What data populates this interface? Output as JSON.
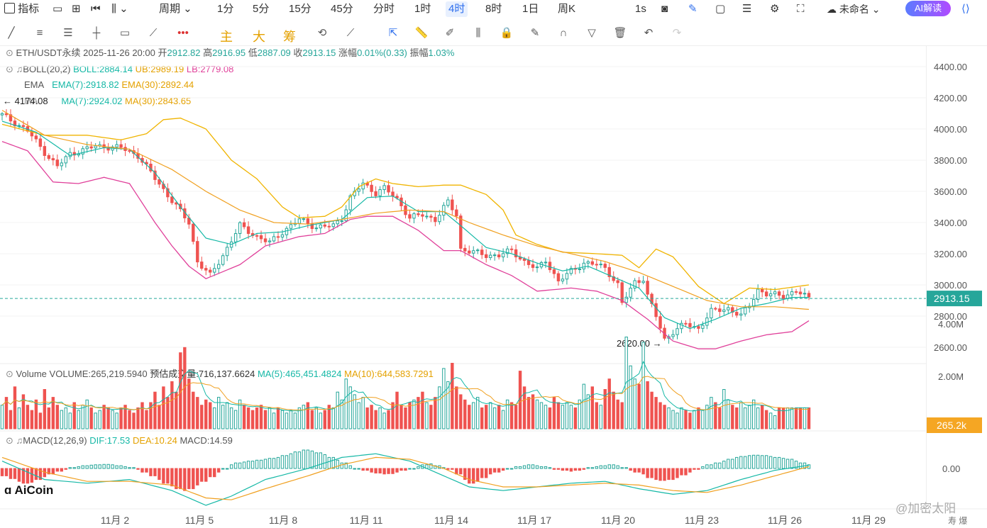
{
  "toolbar": {
    "indicator_label": "指标",
    "period_label": "周期",
    "periods": [
      "1分",
      "5分",
      "15分",
      "45分",
      "分时",
      "1时",
      "4时",
      "8时",
      "1日",
      "周K"
    ],
    "active_period": "4时",
    "refresh": "1s",
    "layout_name": "未命名",
    "ai_label": "AI解读"
  },
  "drawbar": {
    "main": "主",
    "big": "大",
    "chips": "筹"
  },
  "price_info": {
    "symbol": "ETH/USDT永续",
    "datetime": "2025-11-26 20:00",
    "open_label": "开",
    "open": "2912.82",
    "high_label": "高",
    "high": "2916.95",
    "low_label": "低",
    "low": "2887.09",
    "close_label": "收",
    "close": "2913.15",
    "change_label": "涨幅",
    "change": "0.01%(0.33)",
    "amp_label": "振幅",
    "amp": "1.03%"
  },
  "boll_info": {
    "name": "BOLL(20,2)",
    "boll": "BOLL:2884.14",
    "ub": "UB:2989.19",
    "lb": "LB:2779.08"
  },
  "ema_info": {
    "name": "EMA",
    "ema7": "EMA(7):2918.82",
    "ema30": "EMA(30):2892.44"
  },
  "ma_info": {
    "name": "MA",
    "ma7": "MA(7):2924.02",
    "ma30": "MA(30):2843.65"
  },
  "vol_info": {
    "name": "Volume",
    "volume": "VOLUME:265,219.5940",
    "est": "预估成交量:716,137.6624",
    "ma5": "MA(5):465,451.4824",
    "ma10": "MA(10):644,583.7291"
  },
  "macd_info": {
    "name": "MACD(12,26,9)",
    "dif": "DIF:17.53",
    "dea": "DEA:10.24",
    "macd": "MACD:14.59"
  },
  "labels": {
    "high_mark": "4174.08",
    "low_mark": "2620.00",
    "current_price": "2913.15",
    "current_vol": "265.2k",
    "logo": "AiCoin",
    "watermark": "@加密太阳",
    "corner": "寿 爆"
  },
  "colors": {
    "up": "#26a69a",
    "down": "#ef5350",
    "boll_band": "#f0b400",
    "boll_lower": "#e0409a",
    "ma7": "#15b8a6",
    "ma30": "#f0a020",
    "accent": "#2f6fed"
  },
  "chart_data": {
    "type": "candlestick",
    "price_axis": {
      "ticks": [
        2600,
        2800,
        3000,
        3200,
        3400,
        3600,
        3800,
        4000,
        4200,
        4400
      ],
      "tick_labels": [
        "2600.00",
        "2800.00",
        "3000.00",
        "3200.00",
        "3400.00",
        "3600.00",
        "3800.00",
        "4000.00",
        "4200.00",
        "4400.00"
      ]
    },
    "volume_axis": {
      "ticks": [
        "2.00M",
        "4.00M"
      ]
    },
    "macd_axis": {
      "ticks": [
        "0.00"
      ]
    },
    "x_labels": [
      "11月 2",
      "11月 5",
      "11月 8",
      "11月 11",
      "11月 14",
      "11月 17",
      "11月 20",
      "11月 23",
      "11月 26",
      "11月 29"
    ],
    "close_series": [
      [
        0,
        4090
      ],
      [
        6,
        3990
      ],
      [
        10,
        3850
      ],
      [
        13,
        3760
      ],
      [
        16,
        3840
      ],
      [
        22,
        3890
      ],
      [
        28,
        3880
      ],
      [
        32,
        3830
      ],
      [
        35,
        3720
      ],
      [
        40,
        3540
      ],
      [
        44,
        3400
      ],
      [
        46,
        3150
      ],
      [
        49,
        3060
      ],
      [
        52,
        3190
      ],
      [
        56,
        3380
      ],
      [
        60,
        3310
      ],
      [
        63,
        3270
      ],
      [
        66,
        3340
      ],
      [
        70,
        3420
      ],
      [
        74,
        3370
      ],
      [
        78,
        3380
      ],
      [
        80,
        3430
      ],
      [
        82,
        3560
      ],
      [
        85,
        3650
      ],
      [
        88,
        3590
      ],
      [
        90,
        3620
      ],
      [
        93,
        3550
      ],
      [
        96,
        3430
      ],
      [
        99,
        3450
      ],
      [
        102,
        3420
      ],
      [
        105,
        3530
      ],
      [
        107,
        3450
      ],
      [
        108,
        3230
      ],
      [
        111,
        3210
      ],
      [
        114,
        3190
      ],
      [
        117,
        3190
      ],
      [
        120,
        3220
      ],
      [
        123,
        3150
      ],
      [
        126,
        3100
      ],
      [
        128,
        3160
      ],
      [
        131,
        3020
      ],
      [
        134,
        3090
      ],
      [
        137,
        3140
      ],
      [
        140,
        3130
      ],
      [
        142,
        3110
      ],
      [
        145,
        3000
      ],
      [
        146,
        2880
      ],
      [
        149,
        3020
      ],
      [
        151,
        3040
      ],
      [
        152,
        2930
      ],
      [
        154,
        2800
      ],
      [
        156,
        2650
      ],
      [
        158,
        2700
      ],
      [
        161,
        2750
      ],
      [
        164,
        2720
      ],
      [
        167,
        2830
      ],
      [
        171,
        2850
      ],
      [
        174,
        2800
      ],
      [
        176,
        2870
      ],
      [
        178,
        2970
      ],
      [
        180,
        2940
      ],
      [
        184,
        2930
      ],
      [
        187,
        2960
      ],
      [
        190,
        2913
      ]
    ],
    "boll_upper": [
      [
        0,
        4030
      ],
      [
        10,
        3960
      ],
      [
        20,
        3960
      ],
      [
        28,
        3930
      ],
      [
        34,
        3970
      ],
      [
        38,
        4060
      ],
      [
        42,
        4070
      ],
      [
        48,
        4000
      ],
      [
        54,
        3800
      ],
      [
        60,
        3680
      ],
      [
        66,
        3500
      ],
      [
        70,
        3430
      ],
      [
        76,
        3440
      ],
      [
        80,
        3500
      ],
      [
        84,
        3630
      ],
      [
        88,
        3680
      ],
      [
        92,
        3650
      ],
      [
        98,
        3630
      ],
      [
        104,
        3640
      ],
      [
        108,
        3640
      ],
      [
        114,
        3580
      ],
      [
        118,
        3480
      ],
      [
        121,
        3320
      ],
      [
        126,
        3260
      ],
      [
        132,
        3210
      ],
      [
        140,
        3200
      ],
      [
        146,
        3190
      ],
      [
        150,
        3110
      ],
      [
        154,
        3230
      ],
      [
        158,
        3180
      ],
      [
        164,
        2990
      ],
      [
        170,
        2880
      ],
      [
        176,
        2980
      ],
      [
        182,
        2970
      ],
      [
        190,
        3000
      ]
    ],
    "boll_lower": [
      [
        0,
        3920
      ],
      [
        6,
        3860
      ],
      [
        12,
        3660
      ],
      [
        18,
        3650
      ],
      [
        24,
        3690
      ],
      [
        30,
        3650
      ],
      [
        36,
        3400
      ],
      [
        40,
        3250
      ],
      [
        44,
        3120
      ],
      [
        48,
        3040
      ],
      [
        56,
        3130
      ],
      [
        62,
        3250
      ],
      [
        70,
        3310
      ],
      [
        76,
        3330
      ],
      [
        82,
        3420
      ],
      [
        86,
        3440
      ],
      [
        92,
        3440
      ],
      [
        98,
        3350
      ],
      [
        104,
        3220
      ],
      [
        108,
        3220
      ],
      [
        114,
        3130
      ],
      [
        120,
        3060
      ],
      [
        126,
        2960
      ],
      [
        134,
        2980
      ],
      [
        140,
        2960
      ],
      [
        146,
        2900
      ],
      [
        152,
        2780
      ],
      [
        158,
        2640
      ],
      [
        164,
        2590
      ],
      [
        168,
        2590
      ],
      [
        174,
        2640
      ],
      [
        180,
        2680
      ],
      [
        186,
        2700
      ],
      [
        190,
        2770
      ]
    ],
    "ma7": [
      [
        0,
        4050
      ],
      [
        8,
        3980
      ],
      [
        16,
        3830
      ],
      [
        24,
        3880
      ],
      [
        30,
        3870
      ],
      [
        36,
        3720
      ],
      [
        42,
        3500
      ],
      [
        48,
        3300
      ],
      [
        54,
        3260
      ],
      [
        60,
        3330
      ],
      [
        66,
        3340
      ],
      [
        72,
        3380
      ],
      [
        80,
        3420
      ],
      [
        86,
        3560
      ],
      [
        92,
        3570
      ],
      [
        98,
        3470
      ],
      [
        104,
        3470
      ],
      [
        108,
        3380
      ],
      [
        114,
        3240
      ],
      [
        120,
        3200
      ],
      [
        126,
        3140
      ],
      [
        132,
        3090
      ],
      [
        138,
        3120
      ],
      [
        144,
        3050
      ],
      [
        150,
        2980
      ],
      [
        156,
        2790
      ],
      [
        162,
        2720
      ],
      [
        168,
        2780
      ],
      [
        174,
        2850
      ],
      [
        180,
        2880
      ],
      [
        186,
        2920
      ],
      [
        190,
        2920
      ]
    ],
    "ma30": [
      [
        0,
        4120
      ],
      [
        10,
        3960
      ],
      [
        20,
        3900
      ],
      [
        30,
        3870
      ],
      [
        40,
        3740
      ],
      [
        48,
        3600
      ],
      [
        56,
        3480
      ],
      [
        64,
        3400
      ],
      [
        72,
        3390
      ],
      [
        80,
        3420
      ],
      [
        88,
        3460
      ],
      [
        96,
        3480
      ],
      [
        104,
        3470
      ],
      [
        110,
        3400
      ],
      [
        118,
        3320
      ],
      [
        126,
        3250
      ],
      [
        134,
        3200
      ],
      [
        142,
        3150
      ],
      [
        150,
        3080
      ],
      [
        158,
        2990
      ],
      [
        166,
        2900
      ],
      [
        174,
        2860
      ],
      [
        182,
        2860
      ],
      [
        190,
        2843
      ]
    ],
    "volume": [
      0.9,
      1.2,
      0.7,
      1.6,
      0.8,
      1.3,
      0.9,
      0.7,
      1.1,
      0.6,
      1.5,
      0.8,
      1.2,
      0.9,
      0.7,
      0.8,
      0.6,
      1.0,
      0.7,
      0.9,
      1.1,
      0.8,
      0.6,
      0.7,
      0.9,
      0.8,
      0.7,
      0.6,
      0.8,
      0.9,
      0.7,
      0.6,
      0.8,
      1.0,
      0.7,
      1.0,
      1.4,
      0.9,
      1.6,
      1.2,
      1.8,
      1.4,
      2.9,
      3.1,
      1.9,
      1.4,
      1.2,
      0.9,
      1.1,
      1.0,
      0.8,
      1.2,
      0.9,
      1.0,
      0.8,
      0.7,
      1.1,
      0.9,
      0.8,
      0.7,
      0.8,
      0.9,
      0.7,
      0.8,
      0.6,
      0.8,
      0.7,
      0.6,
      0.7,
      0.6,
      0.8,
      0.9,
      1.0,
      0.7,
      0.8,
      0.6,
      0.7,
      0.9,
      0.8,
      1.4,
      1.1,
      1.9,
      1.6,
      1.3,
      1.0,
      1.2,
      0.8,
      0.9,
      0.7,
      0.8,
      0.6,
      0.7,
      1.0,
      1.4,
      0.9,
      0.8,
      1.0,
      1.1,
      1.2,
      1.4,
      1.0,
      0.9,
      1.2,
      1.6,
      2.3,
      1.8,
      2.5,
      1.6,
      1.3,
      1.1,
      0.9,
      1.0,
      1.2,
      0.8,
      0.9,
      1.0,
      0.8,
      0.9,
      0.7,
      1.1,
      1.0,
      0.9,
      2.2,
      1.6,
      1.2,
      1.3,
      1.1,
      1.0,
      0.9,
      0.8,
      1.2,
      1.0,
      0.9,
      1.0,
      0.9,
      0.8,
      1.1,
      1.7,
      1.3,
      1.6,
      1.0,
      0.9,
      1.5,
      1.9,
      1.4,
      1.1,
      1.0,
      3.5,
      2.4,
      1.9,
      1.7,
      3.3,
      1.8,
      1.4,
      1.2,
      1.0,
      0.9,
      0.8,
      0.7,
      0.6,
      0.8,
      0.7,
      0.6,
      0.7,
      0.8,
      0.7,
      0.9,
      1.2,
      1.0,
      0.8,
      1.5,
      1.1,
      0.9,
      0.8,
      1.0,
      0.8,
      0.9,
      1.1,
      0.8,
      0.9,
      0.7,
      0.6,
      0.5
    ],
    "macd_hist": [
      -40,
      -55,
      -70,
      -80,
      -75,
      -60,
      -45,
      -30,
      -15,
      -5,
      5,
      10,
      15,
      18,
      20,
      22,
      20,
      15,
      10,
      5,
      -5,
      -20,
      -40,
      -60,
      -80,
      -95,
      -110,
      -120,
      -110,
      -90,
      -70,
      -45,
      -20,
      0,
      20,
      30,
      35,
      40,
      45,
      50,
      55,
      60,
      70,
      80,
      90,
      100,
      95,
      85,
      75,
      60,
      45,
      30,
      15,
      0,
      -10,
      -20,
      -25,
      -30,
      -28,
      -20,
      -10,
      0,
      10,
      20,
      25,
      15,
      5,
      -5,
      -30,
      -60,
      -80,
      -70,
      -50,
      -30,
      -20,
      -10,
      0,
      10,
      15,
      20,
      15,
      10,
      5,
      -5,
      -10,
      -15,
      -10,
      -5,
      5,
      10,
      15,
      20,
      15,
      5,
      -10,
      -20,
      -30,
      -50,
      -60,
      -65,
      -60,
      -50,
      -35,
      -20,
      -5,
      10,
      20,
      30,
      40,
      50,
      60,
      65,
      70,
      72,
      70,
      65,
      60,
      55,
      50,
      40,
      30,
      20
    ],
    "macd_dif": [
      [
        0,
        40
      ],
      [
        10,
        -60
      ],
      [
        20,
        -80
      ],
      [
        30,
        -60
      ],
      [
        40,
        -120
      ],
      [
        48,
        -200
      ],
      [
        54,
        -150
      ],
      [
        62,
        -60
      ],
      [
        72,
        0
      ],
      [
        80,
        60
      ],
      [
        88,
        80
      ],
      [
        96,
        40
      ],
      [
        104,
        -40
      ],
      [
        110,
        -100
      ],
      [
        118,
        -120
      ],
      [
        126,
        -100
      ],
      [
        134,
        -80
      ],
      [
        142,
        -70
      ],
      [
        150,
        -110
      ],
      [
        158,
        -140
      ],
      [
        166,
        -120
      ],
      [
        174,
        -60
      ],
      [
        182,
        -10
      ],
      [
        190,
        17.53
      ]
    ],
    "macd_dea": [
      [
        0,
        60
      ],
      [
        10,
        -20
      ],
      [
        20,
        -70
      ],
      [
        30,
        -70
      ],
      [
        40,
        -90
      ],
      [
        48,
        -160
      ],
      [
        54,
        -170
      ],
      [
        62,
        -110
      ],
      [
        72,
        -40
      ],
      [
        80,
        20
      ],
      [
        88,
        60
      ],
      [
        96,
        50
      ],
      [
        104,
        0
      ],
      [
        110,
        -60
      ],
      [
        118,
        -100
      ],
      [
        126,
        -100
      ],
      [
        134,
        -90
      ],
      [
        142,
        -80
      ],
      [
        150,
        -90
      ],
      [
        158,
        -120
      ],
      [
        166,
        -130
      ],
      [
        174,
        -90
      ],
      [
        182,
        -40
      ],
      [
        190,
        10.24
      ]
    ]
  }
}
